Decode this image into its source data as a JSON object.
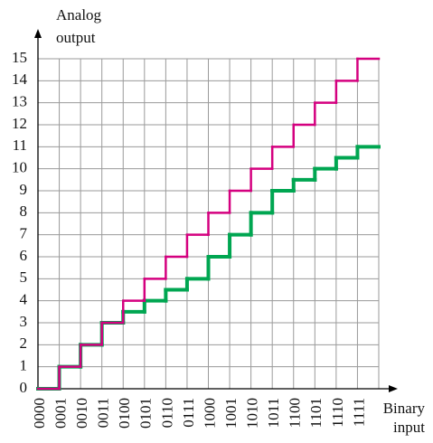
{
  "chart_data": {
    "type": "step",
    "ylabel": [
      "Analog",
      "output"
    ],
    "xlabel": [
      "Binary",
      "input"
    ],
    "categories": [
      "0000",
      "0001",
      "0010",
      "0011",
      "0100",
      "0101",
      "0110",
      "0111",
      "1000",
      "1001",
      "1010",
      "1011",
      "1100",
      "1101",
      "1110",
      "1111"
    ],
    "series": [
      {
        "color": "#00a651",
        "values": [
          0,
          1,
          2,
          3,
          3.5,
          4,
          4.5,
          5,
          6,
          7,
          8,
          9,
          9.5,
          10,
          10.5,
          11
        ]
      },
      {
        "color": "#d4007f",
        "values": [
          0,
          1,
          2,
          3,
          4,
          5,
          6,
          7,
          8,
          9,
          10,
          11,
          12,
          13,
          14,
          15
        ]
      }
    ],
    "ylim": [
      0,
      15
    ],
    "yticks": [
      0,
      1,
      2,
      3,
      4,
      5,
      6,
      7,
      8,
      9,
      10,
      11,
      12,
      13,
      14,
      15
    ],
    "grid": true
  }
}
